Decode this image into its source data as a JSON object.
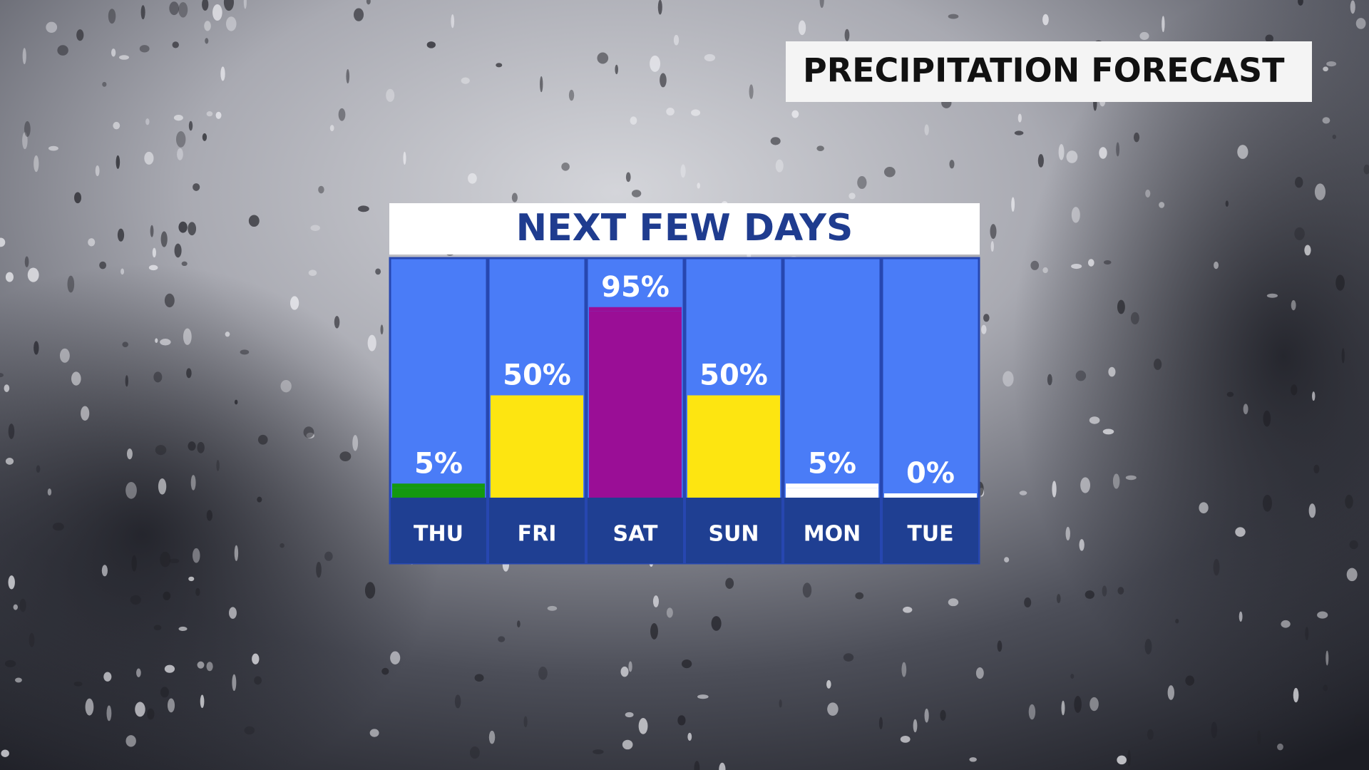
{
  "chart_data": {
    "type": "bar",
    "banner": "PRECIPITATION FORECAST",
    "title": "NEXT FEW DAYS",
    "categories": [
      "THU",
      "FRI",
      "SAT",
      "SUN",
      "MON",
      "TUE"
    ],
    "values": [
      5,
      50,
      95,
      50,
      5,
      0
    ],
    "value_labels": [
      "5%",
      "50%",
      "95%",
      "50%",
      "5%",
      "0%"
    ],
    "colors": [
      "#14990f",
      "#fde511",
      "#9a0e96",
      "#fde511",
      "#ffffff",
      "#ffffff"
    ]
  }
}
